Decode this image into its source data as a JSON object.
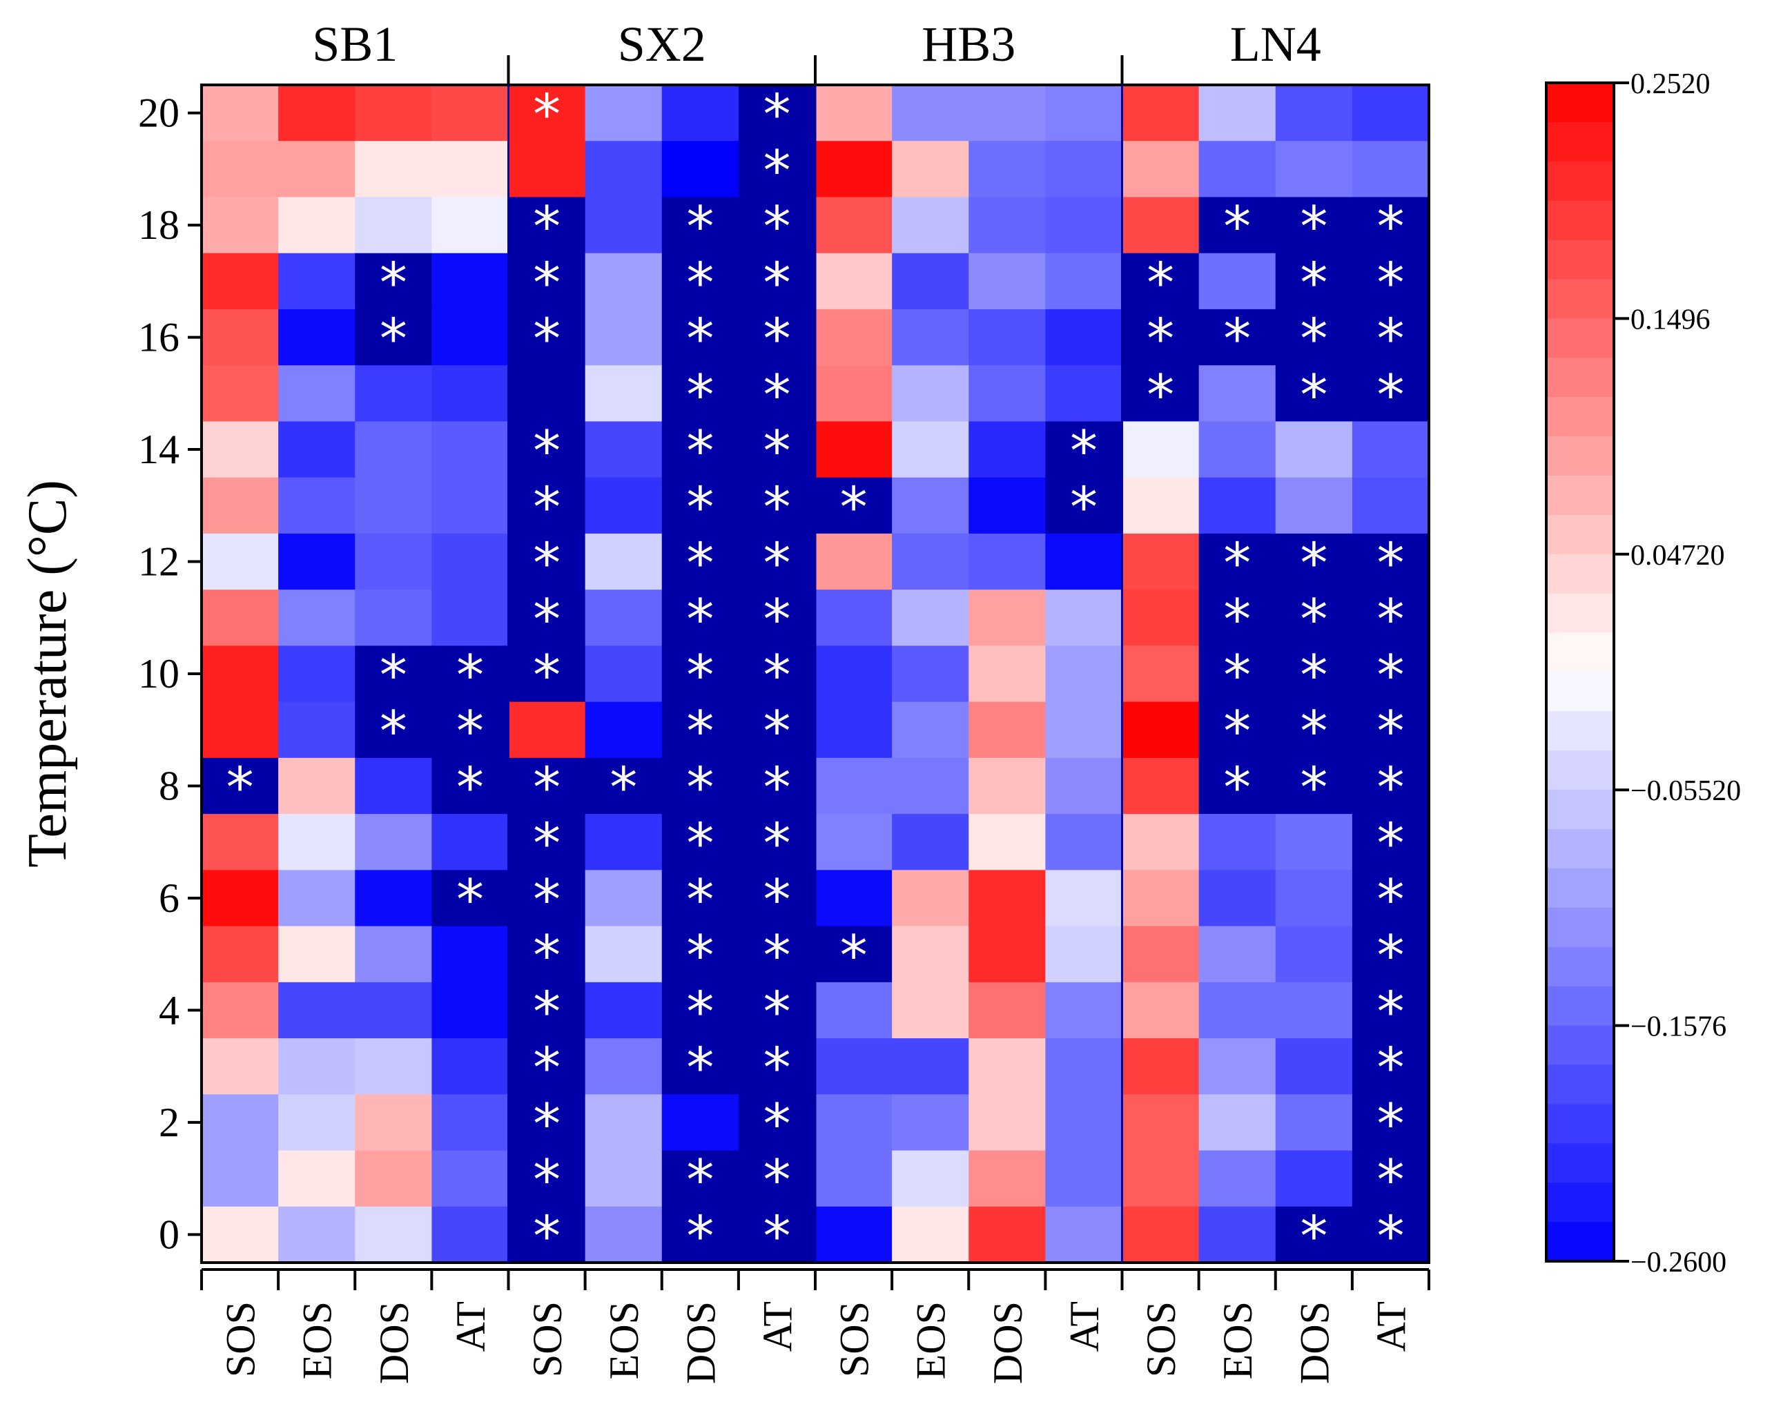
{
  "chart_data": {
    "type": "heatmap",
    "ylabel": "Temperature (°C)",
    "xlabel": "",
    "groups": [
      "SB1",
      "SX2",
      "HB3",
      "LN4"
    ],
    "columns": [
      "SOS",
      "EOS",
      "DOS",
      "AT",
      "SOS",
      "EOS",
      "DOS",
      "AT",
      "SOS",
      "EOS",
      "DOS",
      "AT",
      "SOS",
      "EOS",
      "DOS",
      "AT"
    ],
    "rows": [
      20,
      19,
      18,
      17,
      16,
      15,
      14,
      13,
      12,
      11,
      10,
      9,
      8,
      7,
      6,
      5,
      4,
      3,
      2,
      1,
      0
    ],
    "y_ticks": [
      "20",
      "18",
      "16",
      "14",
      "12",
      "10",
      "8",
      "6",
      "4",
      "2",
      "0"
    ],
    "values": [
      [
        0.08,
        0.21,
        0.19,
        0.18,
        0.22,
        -0.11,
        -0.22,
        -0.3,
        0.08,
        -0.12,
        -0.12,
        -0.13,
        0.19,
        -0.07,
        -0.18,
        -0.2
      ],
      [
        0.09,
        0.09,
        0.02,
        0.02,
        0.22,
        -0.19,
        -0.26,
        -0.3,
        0.24,
        0.06,
        -0.15,
        -0.16,
        0.09,
        -0.16,
        -0.14,
        -0.15
      ],
      [
        0.08,
        0.02,
        -0.04,
        -0.02,
        -0.3,
        -0.19,
        -0.3,
        -0.3,
        0.17,
        -0.07,
        -0.16,
        -0.17,
        0.18,
        -0.3,
        -0.3,
        -0.3
      ],
      [
        0.21,
        -0.2,
        -0.3,
        -0.25,
        -0.3,
        -0.1,
        -0.3,
        -0.3,
        0.05,
        -0.19,
        -0.12,
        -0.15,
        -0.3,
        -0.15,
        -0.3,
        -0.3
      ],
      [
        0.17,
        -0.25,
        -0.3,
        -0.25,
        -0.3,
        -0.1,
        -0.3,
        -0.3,
        0.12,
        -0.16,
        -0.18,
        -0.22,
        -0.3,
        -0.3,
        -0.3,
        -0.3
      ],
      [
        0.16,
        -0.13,
        -0.2,
        -0.21,
        -0.3,
        -0.04,
        -0.3,
        -0.3,
        0.13,
        -0.08,
        -0.16,
        -0.2,
        -0.3,
        -0.13,
        -0.3,
        -0.3
      ],
      [
        0.04,
        -0.21,
        -0.16,
        -0.17,
        -0.3,
        -0.19,
        -0.3,
        -0.3,
        0.24,
        -0.05,
        -0.22,
        -0.3,
        -0.02,
        -0.15,
        -0.08,
        -0.17
      ],
      [
        0.1,
        -0.17,
        -0.16,
        -0.17,
        -0.3,
        -0.21,
        -0.3,
        -0.3,
        -0.3,
        -0.14,
        -0.25,
        -0.3,
        0.02,
        -0.2,
        -0.12,
        -0.18
      ],
      [
        -0.03,
        -0.25,
        -0.17,
        -0.19,
        -0.3,
        -0.05,
        -0.3,
        -0.3,
        0.1,
        -0.16,
        -0.17,
        -0.25,
        0.18,
        -0.3,
        -0.3,
        -0.3
      ],
      [
        0.14,
        -0.13,
        -0.16,
        -0.19,
        -0.3,
        -0.16,
        -0.3,
        -0.3,
        -0.17,
        -0.08,
        0.09,
        -0.08,
        0.19,
        -0.3,
        -0.3,
        -0.3
      ],
      [
        0.22,
        -0.2,
        -0.3,
        -0.3,
        -0.3,
        -0.19,
        -0.3,
        -0.3,
        -0.21,
        -0.17,
        0.06,
        -0.1,
        0.16,
        -0.3,
        -0.3,
        -0.3
      ],
      [
        0.22,
        -0.19,
        -0.3,
        -0.3,
        0.21,
        -0.25,
        -0.3,
        -0.3,
        -0.21,
        -0.13,
        0.12,
        -0.1,
        0.25,
        -0.3,
        -0.3,
        -0.3
      ],
      [
        -0.3,
        0.06,
        -0.21,
        -0.3,
        -0.3,
        -0.3,
        -0.3,
        -0.3,
        -0.14,
        -0.14,
        0.06,
        -0.12,
        0.19,
        -0.3,
        -0.3,
        -0.3
      ],
      [
        0.17,
        -0.03,
        -0.12,
        -0.21,
        -0.3,
        -0.21,
        -0.3,
        -0.3,
        -0.13,
        -0.19,
        0.02,
        -0.15,
        0.06,
        -0.17,
        -0.15,
        -0.3
      ],
      [
        0.24,
        -0.1,
        -0.25,
        -0.3,
        -0.3,
        -0.1,
        -0.3,
        -0.3,
        -0.25,
        0.08,
        0.21,
        -0.04,
        0.09,
        -0.19,
        -0.16,
        -0.3
      ],
      [
        0.18,
        0.02,
        -0.12,
        -0.25,
        -0.3,
        -0.05,
        -0.3,
        -0.3,
        -0.3,
        0.05,
        0.21,
        -0.05,
        0.14,
        -0.12,
        -0.17,
        -0.3
      ],
      [
        0.12,
        -0.19,
        -0.19,
        -0.25,
        -0.3,
        -0.21,
        -0.3,
        -0.3,
        -0.15,
        0.05,
        0.14,
        -0.13,
        0.09,
        -0.15,
        -0.15,
        -0.3
      ],
      [
        0.05,
        -0.07,
        -0.06,
        -0.21,
        -0.3,
        -0.14,
        -0.3,
        -0.3,
        -0.19,
        -0.19,
        0.05,
        -0.15,
        0.19,
        -0.11,
        -0.19,
        -0.3
      ],
      [
        -0.1,
        -0.05,
        0.07,
        -0.18,
        -0.3,
        -0.08,
        -0.25,
        -0.3,
        -0.15,
        -0.14,
        0.05,
        -0.15,
        0.16,
        -0.07,
        -0.15,
        -0.3
      ],
      [
        -0.1,
        0.02,
        0.09,
        -0.16,
        -0.3,
        -0.08,
        -0.3,
        -0.3,
        -0.15,
        -0.04,
        0.11,
        -0.15,
        0.16,
        -0.14,
        -0.2,
        -0.3
      ],
      [
        0.02,
        -0.08,
        -0.04,
        -0.19,
        -0.3,
        -0.12,
        -0.3,
        -0.3,
        -0.25,
        0.02,
        0.2,
        -0.12,
        0.19,
        -0.19,
        -0.3,
        -0.3
      ]
    ],
    "significant": [
      [
        3,
        7
      ],
      [
        4,
        7
      ],
      [
        0,
        4
      ],
      [
        2,
        4
      ],
      [
        3,
        4
      ],
      [
        4,
        4
      ],
      [
        6,
        4
      ],
      [
        7,
        4
      ],
      [
        8,
        4
      ],
      [
        9,
        4
      ],
      [
        10,
        4
      ],
      [
        12,
        4
      ],
      [
        13,
        4
      ],
      [
        14,
        4
      ],
      [
        15,
        4
      ],
      [
        16,
        4
      ],
      [
        17,
        4
      ],
      [
        18,
        4
      ],
      [
        19,
        4
      ],
      [
        20,
        4
      ],
      [
        12,
        5
      ],
      [
        2,
        6
      ],
      [
        3,
        6
      ],
      [
        4,
        6
      ],
      [
        5,
        6
      ],
      [
        6,
        6
      ],
      [
        7,
        6
      ],
      [
        8,
        6
      ],
      [
        9,
        6
      ],
      [
        10,
        6
      ],
      [
        11,
        6
      ],
      [
        12,
        6
      ],
      [
        13,
        6
      ],
      [
        14,
        6
      ],
      [
        15,
        6
      ],
      [
        16,
        6
      ],
      [
        17,
        6
      ],
      [
        19,
        6
      ],
      [
        20,
        6
      ],
      [
        0,
        7
      ],
      [
        1,
        7
      ],
      [
        2,
        7
      ],
      [
        3,
        7
      ],
      [
        4,
        7
      ],
      [
        5,
        7
      ],
      [
        6,
        7
      ],
      [
        7,
        7
      ],
      [
        8,
        7
      ],
      [
        9,
        7
      ],
      [
        10,
        7
      ],
      [
        11,
        7
      ],
      [
        12,
        7
      ],
      [
        13,
        7
      ],
      [
        14,
        7
      ],
      [
        15,
        7
      ],
      [
        16,
        7
      ],
      [
        17,
        7
      ],
      [
        18,
        7
      ],
      [
        19,
        7
      ],
      [
        20,
        7
      ],
      [
        3,
        2
      ],
      [
        4,
        2
      ],
      [
        10,
        2
      ],
      [
        11,
        2
      ],
      [
        10,
        3
      ],
      [
        11,
        3
      ],
      [
        12,
        3
      ],
      [
        14,
        3
      ],
      [
        12,
        0
      ],
      [
        7,
        8
      ],
      [
        15,
        8
      ],
      [
        6,
        11
      ],
      [
        7,
        11
      ],
      [
        3,
        12
      ],
      [
        4,
        12
      ],
      [
        5,
        12
      ],
      [
        2,
        13
      ],
      [
        4,
        13
      ],
      [
        8,
        13
      ],
      [
        9,
        13
      ],
      [
        10,
        13
      ],
      [
        11,
        13
      ],
      [
        12,
        13
      ],
      [
        2,
        14
      ],
      [
        3,
        14
      ],
      [
        4,
        14
      ],
      [
        5,
        14
      ],
      [
        8,
        14
      ],
      [
        9,
        14
      ],
      [
        10,
        14
      ],
      [
        11,
        14
      ],
      [
        12,
        14
      ],
      [
        20,
        14
      ],
      [
        2,
        15
      ],
      [
        3,
        15
      ],
      [
        4,
        15
      ],
      [
        5,
        15
      ],
      [
        8,
        15
      ],
      [
        9,
        15
      ],
      [
        10,
        15
      ],
      [
        11,
        15
      ],
      [
        12,
        15
      ],
      [
        13,
        15
      ],
      [
        14,
        15
      ],
      [
        15,
        15
      ],
      [
        16,
        15
      ],
      [
        17,
        15
      ],
      [
        18,
        15
      ],
      [
        19,
        15
      ],
      [
        20,
        15
      ]
    ],
    "colorbar": {
      "min": -0.26,
      "max": 0.252,
      "ticks": [
        "0.2520",
        "0.1496",
        "0.04720",
        "−0.05520",
        "−0.1576",
        "−0.2600"
      ],
      "tick_values": [
        0.252,
        0.1496,
        0.0472,
        -0.0552,
        -0.1576,
        -0.26
      ],
      "low_color": "#0000ff",
      "mid_color": "#ffffff",
      "high_color": "#ff0000",
      "dark_fill": "#0000a6",
      "steps": 30
    },
    "significance_marker": "*"
  }
}
